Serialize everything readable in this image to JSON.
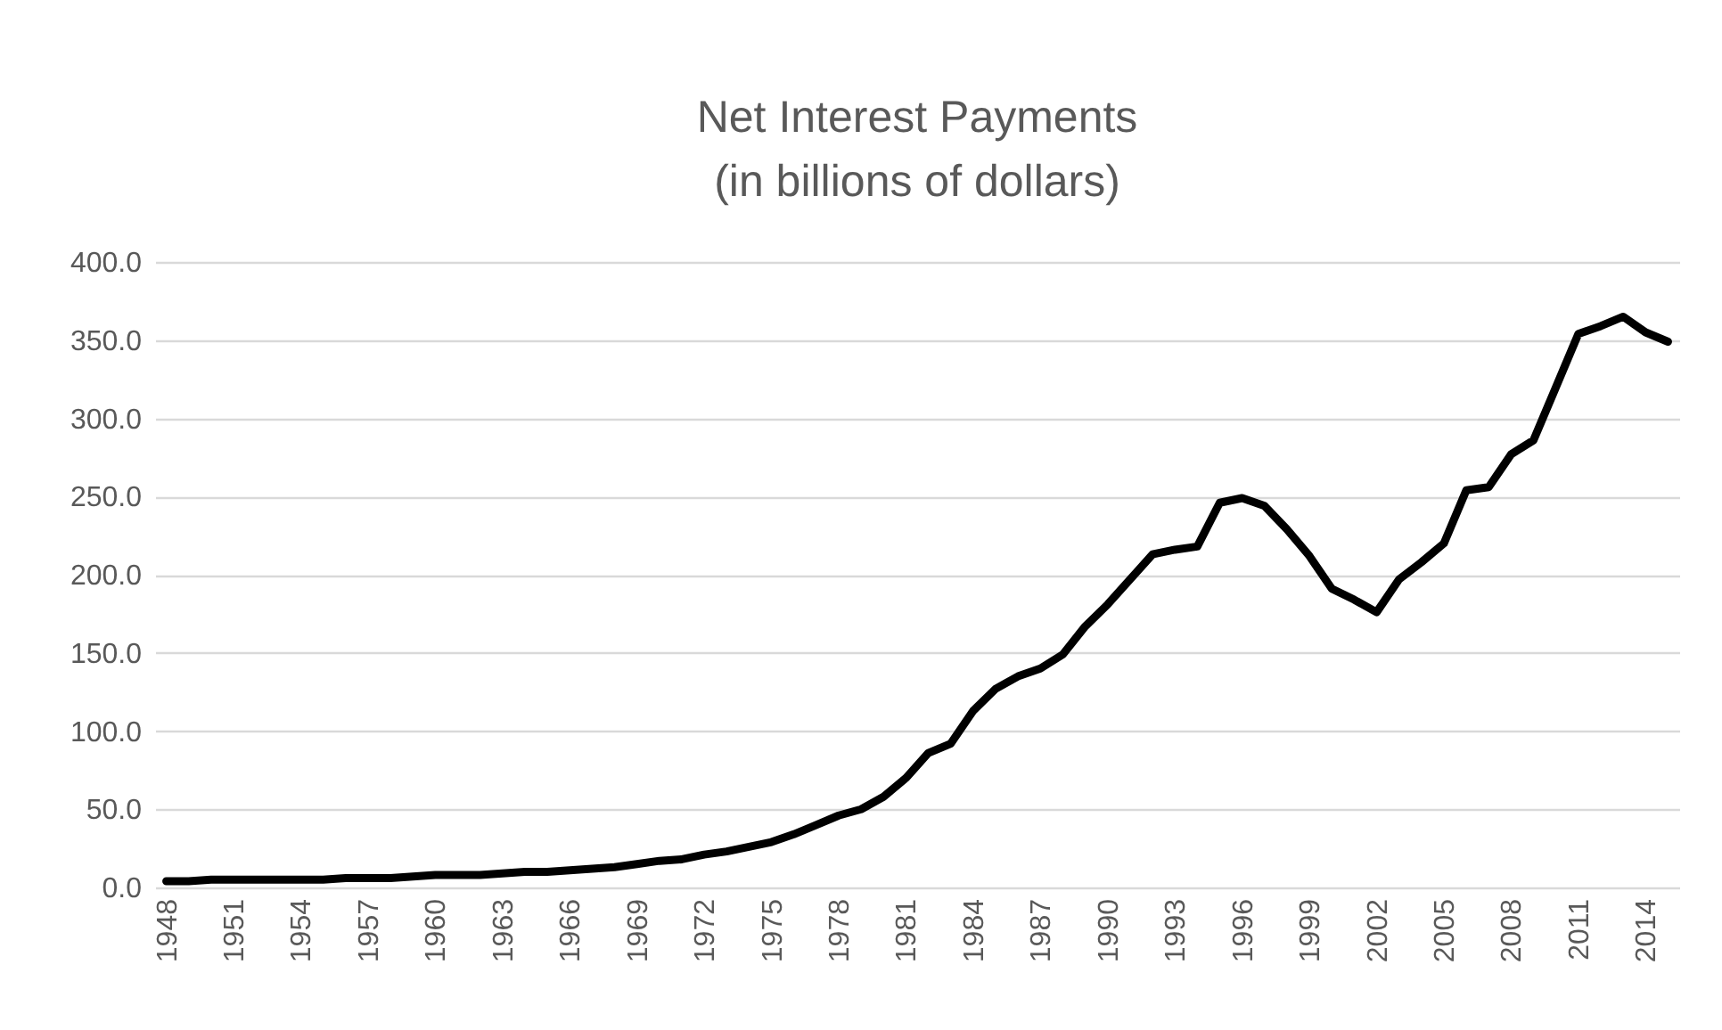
{
  "chart_data": {
    "type": "line",
    "title": [
      "Net Interest Payments",
      "(in billions of dollars)"
    ],
    "categories": [
      "1948",
      null,
      null,
      "1951",
      null,
      null,
      "1954",
      null,
      null,
      "1957",
      null,
      null,
      "1960",
      null,
      null,
      "1963",
      null,
      null,
      "1966",
      null,
      null,
      "1969",
      null,
      null,
      "1972",
      null,
      null,
      "1975",
      null,
      null,
      "1978",
      null,
      null,
      "1981",
      null,
      null,
      "1984",
      null,
      null,
      "1987",
      null,
      null,
      "1990",
      null,
      null,
      "1993",
      null,
      null,
      "1996",
      null,
      null,
      "1999",
      null,
      null,
      "2002",
      null,
      null,
      "2005",
      null,
      null,
      "2008",
      null,
      null,
      "2011",
      null,
      null,
      "2014",
      null
    ],
    "series": [
      {
        "color": "#000000",
        "values": [
          4,
          4,
          5,
          5,
          5,
          5,
          5,
          5,
          6,
          6,
          6,
          7,
          8,
          8,
          8,
          9,
          10,
          10,
          11,
          12,
          13,
          15,
          17,
          18,
          21,
          23,
          26,
          29,
          34,
          40,
          46,
          50,
          58,
          70,
          86,
          92,
          113,
          127,
          135,
          140,
          149,
          167,
          181,
          197,
          213,
          216,
          218,
          246,
          249,
          244,
          229,
          212,
          191,
          184,
          176,
          197,
          208,
          220,
          254,
          256,
          277,
          286,
          320,
          354,
          359,
          365,
          355,
          349
        ]
      }
    ],
    "ylim": [
      0,
      400
    ],
    "yticks": [
      {
        "value": 0,
        "label": "0.0"
      },
      {
        "value": 50,
        "label": "50.0"
      },
      {
        "value": 100,
        "label": "100.0"
      },
      {
        "value": 150,
        "label": "150.0"
      },
      {
        "value": 200,
        "label": "200.0"
      },
      {
        "value": 250,
        "label": "250.0"
      },
      {
        "value": 300,
        "label": "300.0"
      },
      {
        "value": 350,
        "label": "350.0"
      },
      {
        "value": 400,
        "label": "400.0"
      }
    ],
    "grid": "y",
    "marker": "none",
    "line_style": "solid"
  }
}
